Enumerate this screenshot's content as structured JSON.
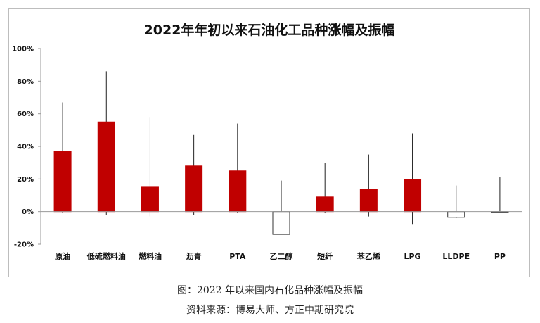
{
  "chart_data": {
    "type": "bar",
    "title": "2022年年初以来石油化工品种涨幅及振幅",
    "xlabel": "",
    "ylabel": "",
    "ylim": [
      -20,
      100
    ],
    "yticks": [
      -20,
      0,
      20,
      40,
      60,
      80,
      100
    ],
    "ytick_labels": [
      "-20%",
      "0%",
      "20%",
      "40%",
      "60%",
      "80%",
      "100%"
    ],
    "grid": false,
    "legend": "none",
    "categories": [
      "原油",
      "低硫燃料油",
      "燃料油",
      "沥青",
      "PTA",
      "乙二醇",
      "短纤",
      "苯乙烯",
      "LPG",
      "LLDPE",
      "PP"
    ],
    "values": [
      37,
      55,
      15,
      28,
      25,
      -14,
      9,
      13.5,
      19.5,
      -3.5,
      -0.5
    ],
    "range_high": [
      67,
      86,
      58,
      47,
      54,
      19,
      30,
      35,
      48,
      16,
      21
    ],
    "range_low": [
      -1,
      -2,
      -3,
      -2,
      -1,
      -14,
      -1,
      -3,
      -8,
      -4,
      -1
    ],
    "colors": {
      "positive": "#c00000",
      "negative": "#ffffff",
      "outline": "#333333",
      "whisker": "#222222"
    }
  },
  "captions": {
    "figure": "图：2022 年以来国内石化品种涨幅及振幅",
    "source": "资料来源：博易大师、方正中期研究院"
  }
}
